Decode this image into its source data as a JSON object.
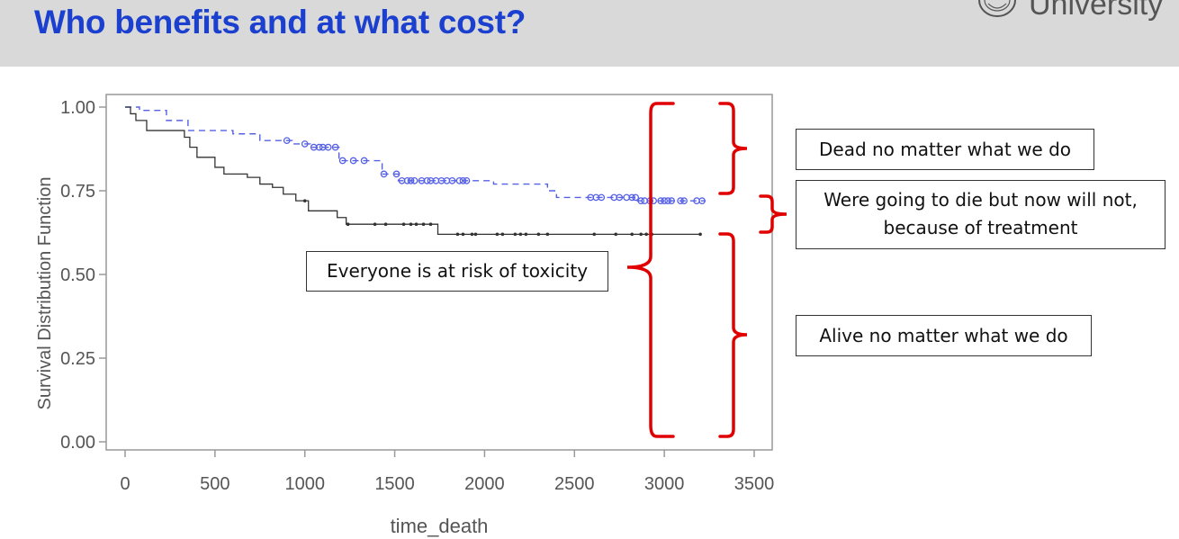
{
  "slide": {
    "title": "Who benefits and at what cost?",
    "logo_text": "University"
  },
  "callouts": {
    "dead": "Dead no matter what we do",
    "were_going_line1": "Were going to die but now will not,",
    "were_going_line2": "because of treatment",
    "risk": "Everyone is at risk of toxicity",
    "alive": "Alive no matter what we do"
  },
  "colors": {
    "title": "#1b3fcf",
    "bracket": "#e00000",
    "treated_series": "#5560e6",
    "control_series": "#333333"
  },
  "chart_data": {
    "type": "line",
    "xlabel": "time_death",
    "ylabel": "Survival Distribution Function",
    "xlim": [
      0,
      3500
    ],
    "ylim": [
      0,
      1
    ],
    "xticks": [
      0,
      500,
      1000,
      1500,
      2000,
      2500,
      3000,
      3500
    ],
    "yticks": [
      "0.00",
      "0.25",
      "0.50",
      "0.75",
      "1.00"
    ],
    "grid": false,
    "series": [
      {
        "style": "dashed",
        "color": "#5560e6",
        "marker": "circle",
        "steps": [
          [
            0,
            1.0
          ],
          [
            80,
            0.99
          ],
          [
            230,
            0.96
          ],
          [
            350,
            0.93
          ],
          [
            600,
            0.92
          ],
          [
            750,
            0.9
          ],
          [
            930,
            0.89
          ],
          [
            1030,
            0.88
          ],
          [
            1190,
            0.84
          ],
          [
            1430,
            0.8
          ],
          [
            1520,
            0.78
          ],
          [
            1800,
            0.78
          ],
          [
            2050,
            0.77
          ],
          [
            2350,
            0.75
          ],
          [
            2400,
            0.73
          ],
          [
            2850,
            0.72
          ],
          [
            3230,
            0.72
          ]
        ],
        "censored": [
          900,
          1000,
          1050,
          1080,
          1100,
          1130,
          1170,
          1210,
          1270,
          1330,
          1440,
          1510,
          1540,
          1570,
          1590,
          1610,
          1650,
          1680,
          1700,
          1730,
          1760,
          1790,
          1820,
          1860,
          1880,
          1900,
          2590,
          2620,
          2650,
          2720,
          2750,
          2790,
          2820,
          2840,
          2870,
          2890,
          2920,
          2940,
          2980,
          3000,
          3020,
          3040,
          3090,
          3110,
          3180,
          3210
        ]
      },
      {
        "style": "solid",
        "color": "#333333",
        "marker": "dot",
        "steps": [
          [
            0,
            1.0
          ],
          [
            30,
            0.98
          ],
          [
            60,
            0.96
          ],
          [
            120,
            0.93
          ],
          [
            330,
            0.91
          ],
          [
            360,
            0.88
          ],
          [
            400,
            0.85
          ],
          [
            500,
            0.82
          ],
          [
            550,
            0.8
          ],
          [
            680,
            0.79
          ],
          [
            750,
            0.77
          ],
          [
            820,
            0.76
          ],
          [
            880,
            0.74
          ],
          [
            950,
            0.72
          ],
          [
            1020,
            0.69
          ],
          [
            1180,
            0.67
          ],
          [
            1230,
            0.65
          ],
          [
            1740,
            0.62
          ],
          [
            3200,
            0.62
          ]
        ],
        "censored": [
          1000,
          1240,
          1390,
          1450,
          1550,
          1590,
          1620,
          1660,
          1700,
          1850,
          1880,
          1930,
          1950,
          2070,
          2100,
          2170,
          2200,
          2230,
          2300,
          2350,
          2610,
          2730,
          2820,
          2870,
          2900,
          2930,
          3200
        ]
      }
    ]
  }
}
